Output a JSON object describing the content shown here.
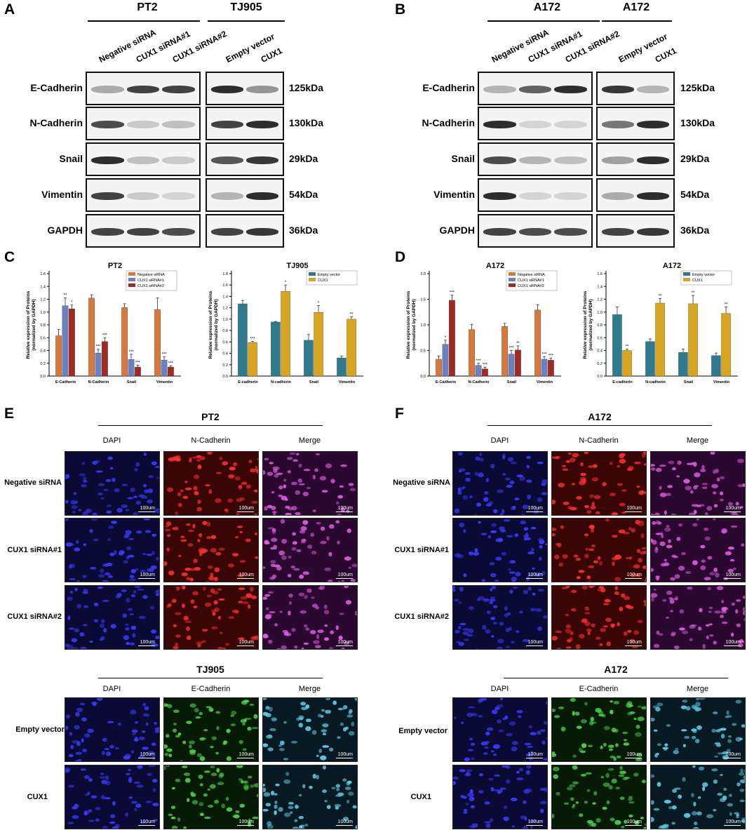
{
  "panels": {
    "A": "A",
    "B": "B",
    "C": "C",
    "D": "D",
    "E": "E",
    "F": "F"
  },
  "wb_A": {
    "groups": [
      "PT2",
      "TJ905"
    ],
    "lanes_left": [
      "Negative siRNA",
      "CUX1 siRNA#1",
      "CUX1 siRNA#2"
    ],
    "lanes_right": [
      "Empty vector",
      "CUX1"
    ],
    "proteins": [
      "E-Cadherin",
      "N-Cadherin",
      "Snail",
      "Vimentin",
      "GAPDH"
    ],
    "kda": [
      "125kDa",
      "130kDa",
      "29kDa",
      "54kDa",
      "36kDa"
    ]
  },
  "wb_B": {
    "groups": [
      "A172",
      "A172"
    ],
    "lanes_left": [
      "Negative siRNA",
      "CUX1 siRNA#1",
      "CUX1 siRNA#2"
    ],
    "lanes_right": [
      "Empty vector",
      "CUX1"
    ],
    "proteins": [
      "E-Cadherin",
      "N-Cadherin",
      "Snail",
      "Vimentin",
      "GAPDH"
    ],
    "kda": [
      "125kDa",
      "130kDa",
      "29kDa",
      "54kDa",
      "36kDa"
    ]
  },
  "chart_data": [
    {
      "type": "bar",
      "title": "PT2",
      "ylabel": "Relative expression of Proteins (normalized by GAPDH)",
      "categories": [
        "E-Cadherin",
        "N-Cadherin",
        "Snail",
        "Vimentin"
      ],
      "ylim": [
        0,
        1.6
      ],
      "yticks": [
        "0.0",
        "0.2",
        "0.4",
        "0.6",
        "0.8",
        "1.0",
        "1.2",
        "1.4",
        "1.6"
      ],
      "series": [
        {
          "name": "Negative siRNA",
          "color": "#d9783a",
          "values": [
            0.63,
            1.22,
            1.07,
            1.04
          ],
          "err": [
            0.1,
            0.05,
            0.06,
            0.18
          ]
        },
        {
          "name": "CUX1 siRNA#1",
          "color": "#6a80c0",
          "values": [
            1.1,
            0.36,
            0.26,
            0.25
          ],
          "err": [
            0.12,
            0.06,
            0.08,
            0.05
          ]
        },
        {
          "name": "CUX1 siRNA#2",
          "color": "#9e2a22",
          "values": [
            1.05,
            0.54,
            0.14,
            0.14
          ],
          "err": [
            0.06,
            0.06,
            0.03,
            0.02
          ]
        }
      ],
      "sig": [
        [
          "",
          "**",
          "*"
        ],
        [
          "",
          "***",
          "***"
        ],
        [
          "",
          "***",
          "***"
        ],
        [
          "",
          "***",
          "***"
        ]
      ]
    },
    {
      "type": "bar",
      "title": "TJ905",
      "ylabel": "Relative expression of Proteins (normalized by GAPDH)",
      "categories": [
        "E-cadherin",
        "N-cadherin",
        "Snail",
        "Vimentin"
      ],
      "ylim": [
        0,
        1.8
      ],
      "yticks": [
        "0.0",
        "0.2",
        "0.4",
        "0.6",
        "0.8",
        "1.0",
        "1.2",
        "1.4",
        "1.6",
        "1.8"
      ],
      "series": [
        {
          "name": "Empty vector",
          "color": "#2f7a8c",
          "values": [
            1.27,
            0.95,
            0.63,
            0.32
          ],
          "err": [
            0.06,
            0.01,
            0.1,
            0.03
          ]
        },
        {
          "name": "CUX1",
          "color": "#d8a521",
          "values": [
            0.59,
            1.49,
            1.12,
            1.0
          ],
          "err": [
            0.02,
            0.11,
            0.12,
            0.04
          ]
        }
      ],
      "sig": [
        [
          "",
          "***"
        ],
        [
          "",
          "*"
        ],
        [
          "",
          "*"
        ],
        [
          "",
          "**"
        ]
      ]
    },
    {
      "type": "bar",
      "title": "A172",
      "ylabel": "Relative expression of Proteins (normalized by GAPDH)",
      "categories": [
        "E-Cadherin",
        "N-Cadherin",
        "Snail",
        "Vimentin"
      ],
      "ylim": [
        0,
        2.0
      ],
      "yticks": [
        "0.0",
        "0.5",
        "1.0",
        "1.5",
        "2.0"
      ],
      "series": [
        {
          "name": "Negative siRNA",
          "color": "#d9783a",
          "values": [
            0.33,
            0.91,
            0.97,
            1.29
          ],
          "err": [
            0.06,
            0.1,
            0.06,
            0.1
          ]
        },
        {
          "name": "CUX1 siRNA#1",
          "color": "#6a80c0",
          "values": [
            0.62,
            0.21,
            0.43,
            0.33
          ],
          "err": [
            0.08,
            0.04,
            0.07,
            0.05
          ]
        },
        {
          "name": "CUX1 siRNA#2",
          "color": "#9e2a22",
          "values": [
            1.48,
            0.14,
            0.51,
            0.31
          ],
          "err": [
            0.1,
            0.03,
            0.08,
            0.04
          ]
        }
      ],
      "sig": [
        [
          "",
          "*",
          "***"
        ],
        [
          "",
          "***",
          "***"
        ],
        [
          "",
          "***",
          "**"
        ],
        [
          "",
          "***",
          "***"
        ]
      ]
    },
    {
      "type": "bar",
      "title": "A172",
      "ylabel": "Relative expression of Proteins (normalized by GAPDH)",
      "categories": [
        "E-cadherin",
        "N-cadherin",
        "Snail",
        "Vimentin"
      ],
      "ylim": [
        0,
        1.6
      ],
      "yticks": [
        "0.0",
        "0.2",
        "0.4",
        "0.6",
        "0.8",
        "1.0",
        "1.2",
        "1.4",
        "1.6"
      ],
      "series": [
        {
          "name": "Empty vector",
          "color": "#2f7a8c",
          "values": [
            0.96,
            0.54,
            0.37,
            0.32
          ],
          "err": [
            0.12,
            0.04,
            0.05,
            0.04
          ]
        },
        {
          "name": "CUX1",
          "color": "#d8a521",
          "values": [
            0.4,
            1.14,
            1.13,
            0.98
          ],
          "err": [
            0.02,
            0.07,
            0.13,
            0.1
          ]
        }
      ],
      "sig": [
        [
          "",
          "**"
        ],
        [
          "",
          "**"
        ],
        [
          "",
          "**"
        ],
        [
          "",
          "**"
        ]
      ]
    }
  ],
  "if_E": {
    "title1": "PT2",
    "title2": "TJ905",
    "cols1": [
      "DAPI",
      "N-Cadherin",
      "Merge"
    ],
    "cols2": [
      "DAPI",
      "E-Cadherin",
      "Merge"
    ],
    "rows1": [
      "Negative siRNA",
      "CUX1 siRNA#1",
      "CUX1 siRNA#2"
    ],
    "rows2": [
      "Empty vector",
      "CUX1"
    ],
    "scale": "100um"
  },
  "if_F": {
    "title1": "A172",
    "title2": "A172",
    "cols1": [
      "DAPI",
      "N-Cadherin",
      "Merge"
    ],
    "cols2": [
      "DAPI",
      "E-Cadherin",
      "Merge"
    ],
    "rows1": [
      "Negative siRNA",
      "CUX1 siRNA#1",
      "CUX1 siRNA#2"
    ],
    "rows2": [
      "Empty vector",
      "CUX1"
    ],
    "scale": "100um"
  }
}
